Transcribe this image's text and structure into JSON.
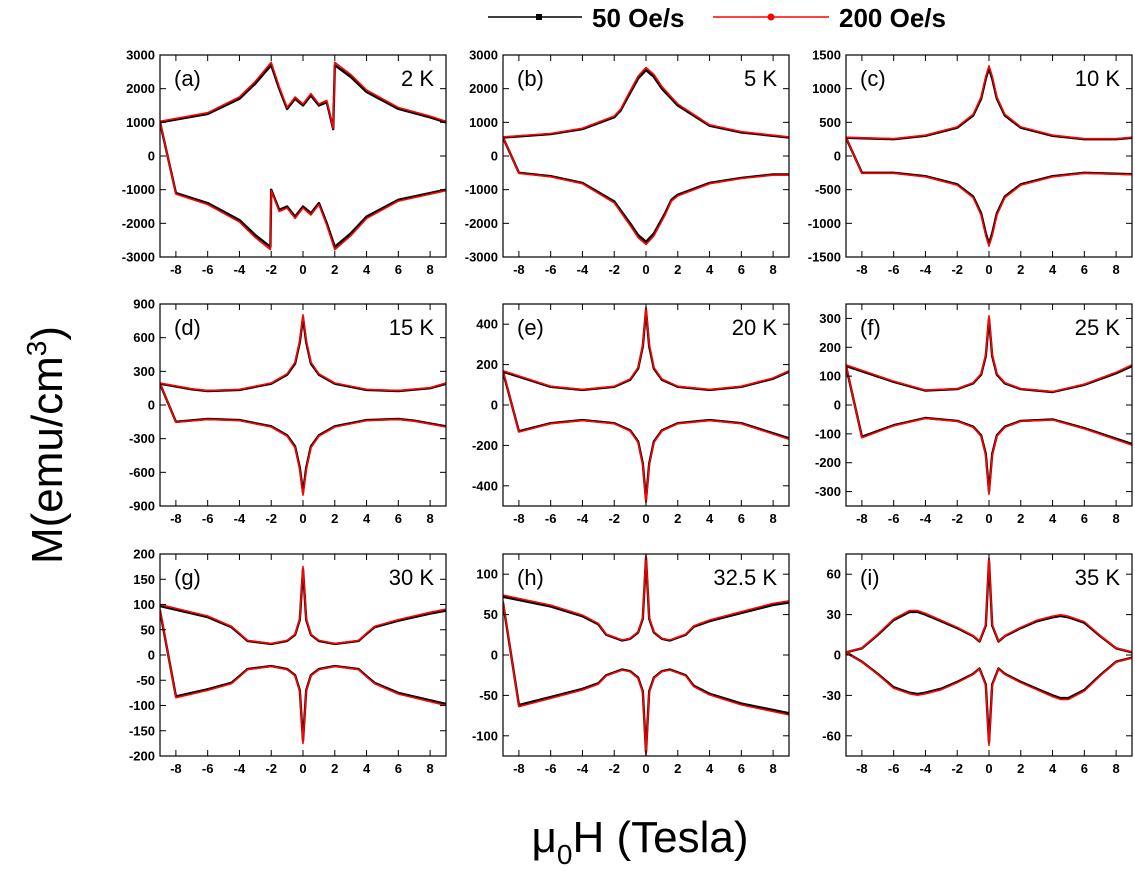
{
  "figure": {
    "ylabel_main": "M(emu/cm",
    "ylabel_sup": "3",
    "ylabel_close": ")",
    "xlabel_mu": "μ",
    "xlabel_sub": "0",
    "xlabel_rest": "H (Tesla)"
  },
  "legend": [
    {
      "label": "50 Oe/s",
      "color": "#000000",
      "marker": "square"
    },
    {
      "label": "200 Oe/s",
      "color": "#ff0000",
      "marker": "circle"
    }
  ],
  "chart_data": [
    {
      "type": "line",
      "panel": "(a)",
      "temperature": "2 K",
      "xlim": [
        -9,
        9
      ],
      "ylim": [
        -3000,
        3000
      ],
      "xticks": [
        -8,
        -6,
        -4,
        -2,
        0,
        2,
        4,
        6,
        8
      ],
      "yticks": [
        -3000,
        -2000,
        -1000,
        0,
        1000,
        2000,
        3000
      ],
      "upper_branch": {
        "x": [
          -9,
          -6,
          -4,
          -3,
          -2,
          -1.5,
          -1,
          -0.5,
          0,
          0.5,
          1,
          1.5,
          1.9,
          2,
          3,
          4,
          6,
          8,
          9
        ],
        "y": [
          1000,
          1250,
          1700,
          2150,
          2700,
          2000,
          1400,
          1700,
          1500,
          1800,
          1500,
          1600,
          800,
          2700,
          2350,
          1900,
          1400,
          1150,
          1000
        ]
      },
      "lower_branch": {
        "x": [
          -9,
          -8,
          -6,
          -4,
          -3,
          -2.05,
          -2,
          -1.5,
          -1,
          -0.5,
          0,
          0.5,
          1,
          1.5,
          2,
          3,
          4,
          6,
          9
        ],
        "y": [
          1000,
          -1100,
          -1400,
          -1900,
          -2350,
          -2700,
          -1000,
          -1600,
          -1500,
          -1800,
          -1500,
          -1700,
          -1400,
          -2000,
          -2700,
          -2300,
          -1800,
          -1300,
          -1000
        ]
      },
      "series": [
        {
          "name": "50 Oe/s",
          "color": "#000000"
        },
        {
          "name": "200 Oe/s",
          "color": "#ff0000"
        }
      ]
    },
    {
      "type": "line",
      "panel": "(b)",
      "temperature": "5 K",
      "xlim": [
        -9,
        9
      ],
      "ylim": [
        -3000,
        3000
      ],
      "xticks": [
        -8,
        -6,
        -4,
        -2,
        0,
        2,
        4,
        6,
        8
      ],
      "yticks": [
        -3000,
        -2000,
        -1000,
        0,
        1000,
        2000,
        3000
      ],
      "upper_branch": {
        "x": [
          -9,
          -6,
          -4,
          -2,
          -1.6,
          -1.2,
          -0.5,
          0,
          0.5,
          1,
          2,
          4,
          6,
          8,
          9
        ],
        "y": [
          550,
          650,
          800,
          1150,
          1350,
          1700,
          2300,
          2550,
          2350,
          2000,
          1500,
          900,
          700,
          600,
          550
        ]
      },
      "lower_branch": {
        "x": [
          -9,
          -8,
          -6,
          -4,
          -2,
          -1,
          -0.5,
          0,
          0.5,
          1.2,
          1.6,
          2,
          4,
          6,
          8,
          9
        ],
        "y": [
          550,
          -500,
          -600,
          -800,
          -1350,
          -2000,
          -2350,
          -2550,
          -2300,
          -1700,
          -1300,
          -1150,
          -800,
          -650,
          -550,
          -550
        ]
      },
      "series": [
        {
          "name": "50 Oe/s",
          "color": "#000000"
        },
        {
          "name": "200 Oe/s",
          "color": "#ff0000"
        }
      ]
    },
    {
      "type": "line",
      "panel": "(c)",
      "temperature": "10 K",
      "xlim": [
        -9,
        9
      ],
      "ylim": [
        -1500,
        1500
      ],
      "xticks": [
        -8,
        -6,
        -4,
        -2,
        0,
        2,
        4,
        6,
        8
      ],
      "yticks": [
        -1500,
        -1000,
        -500,
        0,
        500,
        1000,
        1500
      ],
      "upper_branch": {
        "x": [
          -9,
          -6,
          -4,
          -2,
          -1,
          -0.5,
          -0.2,
          0,
          0.2,
          0.5,
          1,
          2,
          4,
          6,
          8,
          9
        ],
        "y": [
          270,
          250,
          300,
          420,
          600,
          850,
          1150,
          1300,
          1150,
          850,
          600,
          420,
          300,
          250,
          250,
          270
        ]
      },
      "lower_branch": {
        "x": [
          -9,
          -8,
          -6,
          -4,
          -2,
          -1,
          -0.5,
          -0.2,
          0,
          0.2,
          0.5,
          1,
          2,
          4,
          6,
          9
        ],
        "y": [
          270,
          -250,
          -250,
          -300,
          -420,
          -600,
          -850,
          -1150,
          -1300,
          -1150,
          -850,
          -600,
          -420,
          -300,
          -250,
          -270
        ]
      },
      "series": [
        {
          "name": "50 Oe/s",
          "color": "#000000"
        },
        {
          "name": "200 Oe/s",
          "color": "#ff0000"
        }
      ]
    },
    {
      "type": "line",
      "panel": "(d)",
      "temperature": "15 K",
      "xlim": [
        -9,
        9
      ],
      "ylim": [
        -900,
        900
      ],
      "xticks": [
        -8,
        -6,
        -4,
        -2,
        0,
        2,
        4,
        6,
        8
      ],
      "yticks": [
        -900,
        -600,
        -300,
        0,
        300,
        600,
        900
      ],
      "upper_branch": {
        "x": [
          -9,
          -7,
          -6,
          -4,
          -2,
          -1,
          -0.5,
          -0.2,
          0,
          0.2,
          0.5,
          1,
          2,
          4,
          6,
          8,
          9
        ],
        "y": [
          190,
          140,
          125,
          135,
          190,
          270,
          370,
          560,
          780,
          560,
          370,
          270,
          190,
          135,
          125,
          150,
          190
        ]
      },
      "lower_branch": {
        "x": [
          -9,
          -8,
          -6,
          -4,
          -2,
          -1,
          -0.5,
          -0.2,
          0,
          0.2,
          0.5,
          1,
          2,
          4,
          6,
          7,
          9
        ],
        "y": [
          190,
          -150,
          -125,
          -135,
          -190,
          -270,
          -370,
          -560,
          -780,
          -560,
          -370,
          -270,
          -190,
          -135,
          -125,
          -140,
          -190
        ]
      },
      "series": [
        {
          "name": "50 Oe/s",
          "color": "#000000"
        },
        {
          "name": "200 Oe/s",
          "color": "#ff0000"
        }
      ]
    },
    {
      "type": "line",
      "panel": "(e)",
      "temperature": "20 K",
      "xlim": [
        -9,
        9
      ],
      "ylim": [
        -500,
        500
      ],
      "xticks": [
        -8,
        -6,
        -4,
        -2,
        0,
        2,
        4,
        6,
        8
      ],
      "yticks": [
        -400,
        -200,
        0,
        200,
        400
      ],
      "upper_branch": {
        "x": [
          -9,
          -6,
          -4,
          -2,
          -1,
          -0.5,
          -0.2,
          0,
          0.2,
          0.5,
          1,
          2,
          4,
          6,
          8,
          9
        ],
        "y": [
          165,
          90,
          75,
          90,
          125,
          180,
          290,
          470,
          290,
          180,
          125,
          90,
          75,
          90,
          130,
          165
        ]
      },
      "lower_branch": {
        "x": [
          -9,
          -8,
          -6,
          -4,
          -2,
          -1,
          -0.5,
          -0.2,
          0,
          0.2,
          0.5,
          1,
          2,
          4,
          6,
          9
        ],
        "y": [
          165,
          -130,
          -90,
          -75,
          -90,
          -125,
          -180,
          -290,
          -470,
          -290,
          -180,
          -125,
          -90,
          -75,
          -90,
          -165
        ]
      },
      "series": [
        {
          "name": "50 Oe/s",
          "color": "#000000"
        },
        {
          "name": "200 Oe/s",
          "color": "#ff0000"
        }
      ]
    },
    {
      "type": "line",
      "panel": "(f)",
      "temperature": "25 K",
      "xlim": [
        -9,
        9
      ],
      "ylim": [
        -350,
        350
      ],
      "xticks": [
        -8,
        -6,
        -4,
        -2,
        0,
        2,
        4,
        6,
        8
      ],
      "yticks": [
        -300,
        -200,
        -100,
        0,
        100,
        200,
        300
      ],
      "upper_branch": {
        "x": [
          -9,
          -6,
          -4,
          -2,
          -1,
          -0.5,
          -0.2,
          0,
          0.2,
          0.5,
          1,
          2,
          4,
          6,
          8,
          9
        ],
        "y": [
          135,
          80,
          50,
          55,
          75,
          105,
          170,
          300,
          170,
          105,
          75,
          55,
          45,
          70,
          110,
          135
        ]
      },
      "lower_branch": {
        "x": [
          -9,
          -8,
          -6,
          -4,
          -2,
          -1,
          -0.5,
          -0.2,
          0,
          0.2,
          0.5,
          1,
          2,
          4,
          6,
          9
        ],
        "y": [
          135,
          -110,
          -70,
          -45,
          -55,
          -75,
          -105,
          -170,
          -300,
          -170,
          -105,
          -75,
          -55,
          -50,
          -80,
          -135
        ]
      },
      "series": [
        {
          "name": "50 Oe/s",
          "color": "#000000"
        },
        {
          "name": "200 Oe/s",
          "color": "#ff0000"
        }
      ]
    },
    {
      "type": "line",
      "panel": "(g)",
      "temperature": "30 K",
      "xlim": [
        -9,
        9
      ],
      "ylim": [
        -200,
        200
      ],
      "xticks": [
        -8,
        -6,
        -4,
        -2,
        0,
        2,
        4,
        6,
        8
      ],
      "yticks": [
        -200,
        -150,
        -100,
        -50,
        0,
        50,
        100,
        150,
        200
      ],
      "upper_branch": {
        "x": [
          -9,
          -6,
          -4.5,
          -4,
          -3.5,
          -2,
          -1,
          -0.5,
          -0.2,
          0,
          0.2,
          0.5,
          1,
          2,
          3.5,
          4,
          4.5,
          6,
          8,
          9
        ],
        "y": [
          97,
          75,
          55,
          42,
          28,
          22,
          28,
          40,
          70,
          170,
          70,
          40,
          28,
          22,
          28,
          42,
          55,
          68,
          82,
          88
        ]
      },
      "lower_branch": {
        "x": [
          -9,
          -8,
          -6,
          -4.5,
          -4,
          -3.5,
          -2,
          -1,
          -0.5,
          -0.2,
          0,
          0.2,
          0.5,
          1,
          2,
          3.5,
          4,
          4.5,
          6,
          9
        ],
        "y": [
          88,
          -82,
          -68,
          -55,
          -42,
          -28,
          -22,
          -28,
          -40,
          -70,
          -170,
          -70,
          -40,
          -28,
          -22,
          -28,
          -42,
          -55,
          -75,
          -97
        ]
      },
      "series": [
        {
          "name": "50 Oe/s",
          "color": "#000000"
        },
        {
          "name": "200 Oe/s",
          "color": "#ff0000"
        }
      ]
    },
    {
      "type": "line",
      "panel": "(h)",
      "temperature": "32.5 K",
      "xlim": [
        -9,
        9
      ],
      "ylim": [
        -125,
        125
      ],
      "xticks": [
        -8,
        -6,
        -4,
        -2,
        0,
        2,
        4,
        6,
        8
      ],
      "yticks": [
        -100,
        -50,
        0,
        50,
        100
      ],
      "upper_branch": {
        "x": [
          -9,
          -6,
          -4,
          -3,
          -2.5,
          -1.5,
          -1,
          -0.5,
          -0.2,
          0,
          0.2,
          0.5,
          1,
          1.5,
          2.5,
          3,
          4,
          6,
          8,
          9
        ],
        "y": [
          72,
          60,
          48,
          38,
          25,
          18,
          20,
          28,
          45,
          120,
          45,
          28,
          20,
          18,
          25,
          35,
          42,
          52,
          62,
          65
        ]
      },
      "lower_branch": {
        "x": [
          -9,
          -8,
          -6,
          -4,
          -3,
          -2.5,
          -1.5,
          -1,
          -0.5,
          -0.2,
          0,
          0.2,
          0.5,
          1,
          1.5,
          2.5,
          3,
          4,
          6,
          9
        ],
        "y": [
          65,
          -62,
          -52,
          -42,
          -35,
          -25,
          -18,
          -20,
          -28,
          -45,
          -120,
          -45,
          -28,
          -20,
          -18,
          -25,
          -38,
          -48,
          -60,
          -72
        ]
      },
      "series": [
        {
          "name": "50 Oe/s",
          "color": "#000000"
        },
        {
          "name": "200 Oe/s",
          "color": "#ff0000"
        }
      ]
    },
    {
      "type": "line",
      "panel": "(i)",
      "temperature": "35 K",
      "xlim": [
        -9,
        9
      ],
      "ylim": [
        -75,
        75
      ],
      "xticks": [
        -8,
        -6,
        -4,
        -2,
        0,
        2,
        4,
        6,
        8
      ],
      "yticks": [
        -60,
        -30,
        0,
        30,
        60
      ],
      "upper_branch": {
        "x": [
          -9,
          -8,
          -7,
          -6,
          -5,
          -4.5,
          -4,
          -3,
          -2,
          -1,
          -0.6,
          -0.2,
          0,
          0.2,
          0.6,
          1,
          2,
          3,
          4,
          4.5,
          5,
          6,
          7,
          8,
          9
        ],
        "y": [
          2,
          5,
          15,
          26,
          32,
          32,
          30,
          25,
          20,
          14,
          10,
          22,
          70,
          22,
          10,
          14,
          20,
          25,
          28,
          29,
          28,
          24,
          14,
          5,
          2
        ]
      },
      "lower_branch": {
        "x": [
          -9,
          -8,
          -7,
          -6,
          -5,
          -4.5,
          -4,
          -3,
          -2,
          -1,
          -0.6,
          -0.2,
          0,
          0.2,
          0.6,
          1,
          2,
          3,
          4,
          4.5,
          5,
          6,
          7,
          8,
          9
        ],
        "y": [
          2,
          -5,
          -14,
          -24,
          -28,
          -29,
          -28,
          -25,
          -20,
          -14,
          -10,
          -22,
          -65,
          -22,
          -10,
          -14,
          -20,
          -25,
          -30,
          -32,
          -32,
          -26,
          -15,
          -5,
          -2
        ]
      },
      "series": [
        {
          "name": "50 Oe/s",
          "color": "#000000"
        },
        {
          "name": "200 Oe/s",
          "color": "#ff0000"
        }
      ]
    }
  ]
}
